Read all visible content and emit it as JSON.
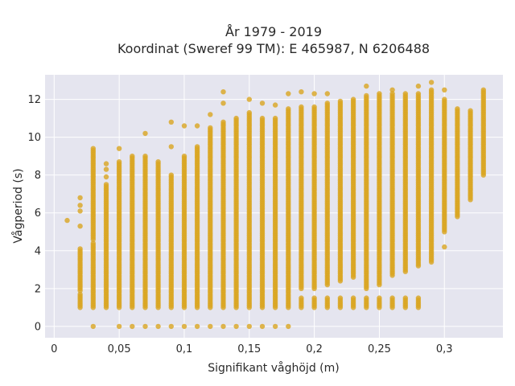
{
  "chart_data": {
    "type": "scatter",
    "title_line1": "År 1979 - 2019",
    "title_line2": "Koordinat (Sweref 99 TM): E 465987, N 6206488",
    "xlabel": "Signifikant våghöjd (m)",
    "ylabel": "Vågperiod (s)",
    "xlim": [
      -0.007,
      0.345
    ],
    "ylim": [
      -0.6,
      13.3
    ],
    "x_ticks": [
      0,
      0.05,
      0.1,
      0.15,
      0.2,
      0.25,
      0.3
    ],
    "x_tick_labels": [
      "0",
      "0,05",
      "0,1",
      "0,15",
      "0,2",
      "0,25",
      "0,3"
    ],
    "y_ticks": [
      0,
      2,
      4,
      6,
      8,
      10,
      12
    ],
    "y_tick_labels": [
      "0",
      "2",
      "4",
      "6",
      "8",
      "10",
      "12"
    ],
    "grid": true,
    "marker_color": "#DAA520",
    "plot_bg": "#E5E5EF",
    "series_columns": [
      {
        "x": 0.01,
        "segments": [],
        "points": [
          5.6
        ]
      },
      {
        "x": 0.02,
        "segments": [
          [
            1.0,
            1.7
          ],
          [
            1.9,
            4.1
          ]
        ],
        "points": [
          5.3,
          6.1,
          6.4,
          6.8
        ]
      },
      {
        "x": 0.03,
        "segments": [
          [
            1.0,
            4.4
          ],
          [
            4.6,
            9.4
          ]
        ],
        "points": [
          0
        ]
      },
      {
        "x": 0.04,
        "segments": [
          [
            1.0,
            7.5
          ]
        ],
        "points": [
          7.9,
          8.3,
          8.6
        ]
      },
      {
        "x": 0.05,
        "segments": [
          [
            1.0,
            8.7
          ]
        ],
        "points": [
          0,
          9.4
        ]
      },
      {
        "x": 0.06,
        "segments": [
          [
            1.0,
            9.0
          ]
        ],
        "points": [
          0
        ]
      },
      {
        "x": 0.07,
        "segments": [
          [
            1.0,
            9.0
          ]
        ],
        "points": [
          0,
          10.2
        ]
      },
      {
        "x": 0.08,
        "segments": [
          [
            1.0,
            8.7
          ]
        ],
        "points": [
          0
        ]
      },
      {
        "x": 0.09,
        "segments": [
          [
            1.0,
            8.0
          ]
        ],
        "points": [
          0,
          9.5,
          10.8
        ]
      },
      {
        "x": 0.1,
        "segments": [
          [
            1.0,
            9.0
          ]
        ],
        "points": [
          0,
          10.6
        ]
      },
      {
        "x": 0.11,
        "segments": [
          [
            1.0,
            9.5
          ]
        ],
        "points": [
          0,
          10.6
        ]
      },
      {
        "x": 0.12,
        "segments": [
          [
            1.0,
            10.5
          ]
        ],
        "points": [
          0,
          11.2
        ]
      },
      {
        "x": 0.13,
        "segments": [
          [
            1.0,
            10.8
          ]
        ],
        "points": [
          0,
          11.8,
          12.4
        ]
      },
      {
        "x": 0.14,
        "segments": [
          [
            1.0,
            11.0
          ]
        ],
        "points": [
          0
        ]
      },
      {
        "x": 0.15,
        "segments": [
          [
            1.0,
            11.3
          ]
        ],
        "points": [
          0,
          12.0
        ]
      },
      {
        "x": 0.16,
        "segments": [
          [
            1.0,
            11.0
          ]
        ],
        "points": [
          0,
          11.8
        ]
      },
      {
        "x": 0.17,
        "segments": [
          [
            1.0,
            11.0
          ]
        ],
        "points": [
          0,
          11.7
        ]
      },
      {
        "x": 0.18,
        "segments": [
          [
            1.0,
            11.5
          ]
        ],
        "points": [
          0,
          12.3
        ]
      },
      {
        "x": 0.19,
        "segments": [
          [
            1.0,
            1.5
          ],
          [
            2.0,
            11.6
          ]
        ],
        "points": [
          12.4
        ]
      },
      {
        "x": 0.2,
        "segments": [
          [
            1.0,
            1.5
          ],
          [
            2.0,
            11.6
          ]
        ],
        "points": [
          12.3
        ]
      },
      {
        "x": 0.21,
        "segments": [
          [
            1.0,
            1.5
          ],
          [
            2.2,
            11.8
          ]
        ],
        "points": [
          12.3
        ]
      },
      {
        "x": 0.22,
        "segments": [
          [
            1.0,
            1.5
          ],
          [
            2.4,
            11.9
          ]
        ],
        "points": []
      },
      {
        "x": 0.23,
        "segments": [
          [
            1.0,
            1.5
          ],
          [
            2.6,
            12.0
          ]
        ],
        "points": []
      },
      {
        "x": 0.24,
        "segments": [
          [
            1.0,
            1.5
          ],
          [
            2.0,
            12.2
          ]
        ],
        "points": [
          12.7
        ]
      },
      {
        "x": 0.25,
        "segments": [
          [
            1.0,
            1.5
          ],
          [
            2.2,
            12.3
          ]
        ],
        "points": []
      },
      {
        "x": 0.26,
        "segments": [
          [
            1.0,
            1.5
          ],
          [
            2.7,
            12.3
          ]
        ],
        "points": [
          12.5
        ]
      },
      {
        "x": 0.27,
        "segments": [
          [
            1.0,
            1.5
          ],
          [
            2.9,
            12.3
          ]
        ],
        "points": []
      },
      {
        "x": 0.28,
        "segments": [
          [
            1.0,
            1.5
          ],
          [
            3.2,
            12.3
          ]
        ],
        "points": [
          12.7
        ]
      },
      {
        "x": 0.29,
        "segments": [
          [
            3.4,
            12.5
          ]
        ],
        "points": [
          12.9
        ]
      },
      {
        "x": 0.3,
        "segments": [
          [
            5.0,
            12.0
          ]
        ],
        "points": [
          4.2,
          12.5
        ]
      },
      {
        "x": 0.31,
        "segments": [
          [
            5.8,
            11.5
          ]
        ],
        "points": []
      },
      {
        "x": 0.32,
        "segments": [
          [
            6.7,
            11.4
          ]
        ],
        "points": []
      },
      {
        "x": 0.33,
        "segments": [
          [
            8.0,
            12.5
          ]
        ],
        "points": []
      }
    ]
  }
}
